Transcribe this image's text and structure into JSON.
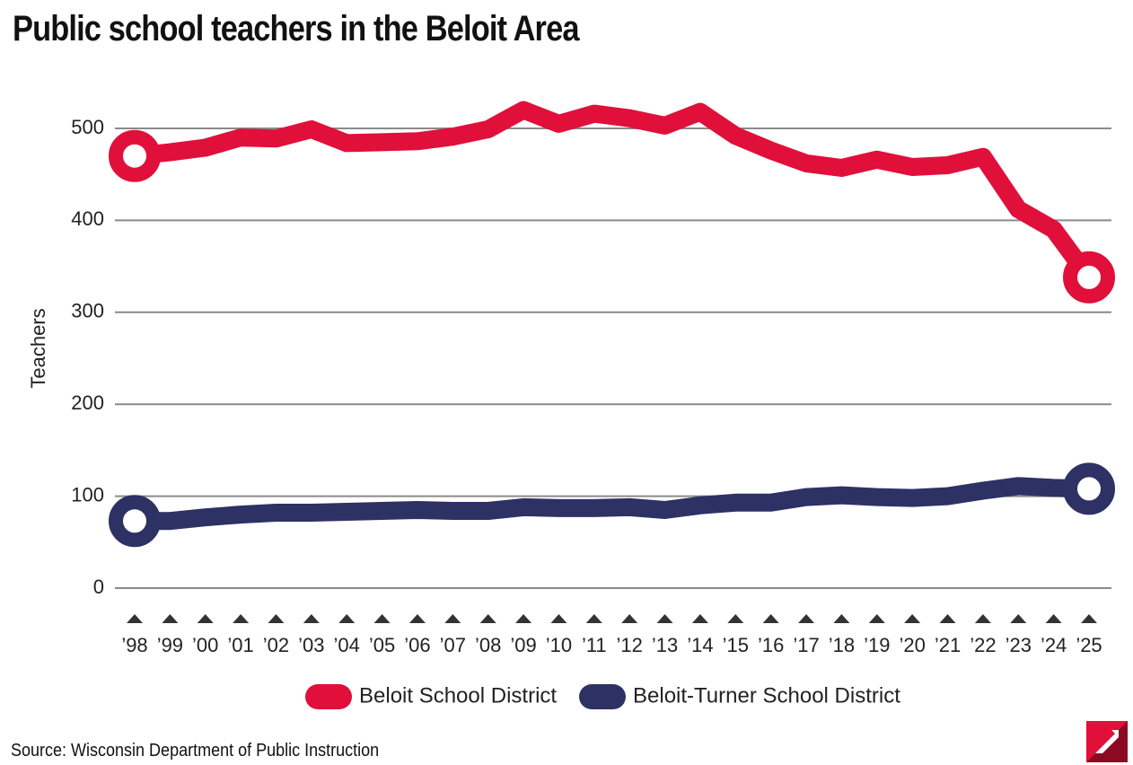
{
  "title": "Public school teachers in the Beloit Area",
  "source": "Source: Wisconsin Department of Public Instruction",
  "chart_data": {
    "type": "line",
    "title": "Public school teachers in the Beloit Area",
    "xlabel": "",
    "ylabel": "Teachers",
    "ylim": [
      0,
      500
    ],
    "yticks": [
      0,
      100,
      200,
      300,
      400,
      500
    ],
    "grid": true,
    "legend_position": "bottom-center",
    "categories": [
      "’98",
      "’99",
      "’00",
      "’01",
      "’02",
      "’03",
      "’04",
      "’05",
      "’06",
      "’07",
      "’08",
      "’09",
      "’10",
      "’11",
      "’12",
      "’13",
      "’14",
      "’15",
      "’16",
      "’17",
      "’18",
      "’19",
      "’20",
      "’21",
      "’22",
      "’23",
      "’24",
      "’25"
    ],
    "series": [
      {
        "name": "Beloit School District",
        "color": "#E0103A",
        "values": [
          470,
          474,
          479,
          490,
          489,
          499,
          484,
          485,
          486,
          491,
          499,
          520,
          505,
          516,
          511,
          503,
          518,
          492,
          476,
          462,
          457,
          466,
          458,
          460,
          469,
          412,
          390,
          338
        ]
      },
      {
        "name": "Beloit-Turner School District",
        "color": "#2E3164",
        "values": [
          73,
          73,
          77,
          80,
          82,
          82,
          83,
          84,
          85,
          84,
          84,
          88,
          87,
          87,
          88,
          85,
          90,
          93,
          93,
          99,
          101,
          99,
          98,
          100,
          106,
          111,
          109,
          108
        ]
      }
    ]
  }
}
